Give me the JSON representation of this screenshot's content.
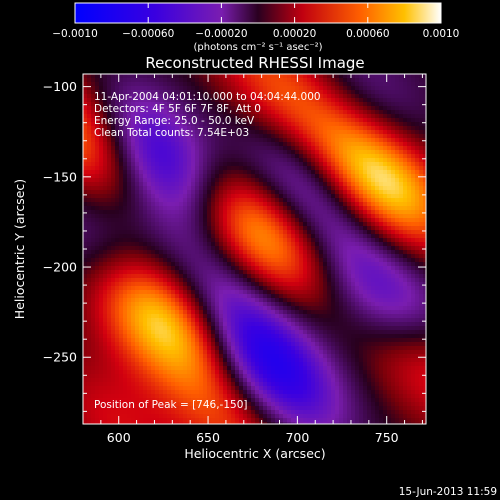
{
  "chart_data": {
    "type": "heatmap",
    "title": "Reconstructed RHESSI Image",
    "xlabel": "Heliocentric X (arcsec)",
    "ylabel": "Heliocentric Y (arcsec)",
    "xlim": [
      580,
      772
    ],
    "ylim": [
      -287,
      -93
    ],
    "xticks": [
      "600",
      "650",
      "700",
      "750"
    ],
    "yticks": [
      "-100",
      "-150",
      "-200",
      "-250"
    ],
    "colorbar": {
      "range": [
        -0.001,
        0.001
      ],
      "ticks": [
        "-0.0010",
        "-0.00060",
        "-0.00020",
        "0.00020",
        "0.00060",
        "0.0010"
      ],
      "label": "(photons cm⁻² s⁻¹ asec⁻²)"
    },
    "annotations": {
      "time": "11-Apr-2004 04:01:10.000 to 04:04:44.000",
      "detectors": "Detectors: 4F 5F 6F 7F 8F, Att 0",
      "energy": "Energy Range: 25.0 - 50.0 keV",
      "clean": "Clean     Total counts: 7.54E+03",
      "peak": "Position of Peak = [746,-150]"
    },
    "sources": [
      {
        "x": 623,
        "y": -228,
        "v": 0.001
      },
      {
        "x": 679,
        "y": -181,
        "v": 0.00085
      },
      {
        "x": 747,
        "y": -151,
        "v": 0.001
      },
      {
        "x": 581,
        "y": -128,
        "v": 0.00075
      },
      {
        "x": 690,
        "y": -100,
        "v": 0.0005
      },
      {
        "x": 770,
        "y": -250,
        "v": 0.00055
      },
      {
        "x": 598,
        "y": -287,
        "v": 0.0003
      },
      {
        "x": 664,
        "y": -287,
        "v": 0.0004
      },
      {
        "x": 620,
        "y": -139,
        "v": -0.0008
      },
      {
        "x": 685,
        "y": -255,
        "v": -0.0008
      },
      {
        "x": 752,
        "y": -219,
        "v": -0.00065
      },
      {
        "x": 702,
        "y": -155,
        "v": -0.0005
      },
      {
        "x": 590,
        "y": -190,
        "v": -0.00035
      },
      {
        "x": 655,
        "y": -208,
        "v": -0.0003
      },
      {
        "x": 740,
        "y": -108,
        "v": -0.0003
      }
    ],
    "grid": false
  },
  "footer": {
    "date": "15-Jun-2013 11:59"
  }
}
